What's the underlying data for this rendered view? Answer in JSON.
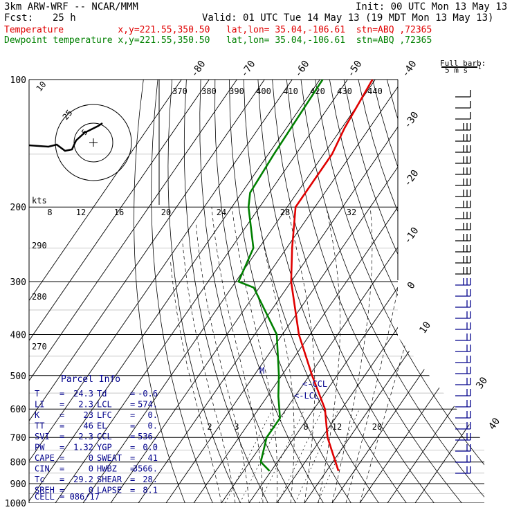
{
  "header": {
    "model": "3km ARW-WRF -- NCAR/MMM",
    "init": "Init: 00 UTC Mon 13 May 13",
    "fcst_label": "Fcst:",
    "fcst_value": "25 h",
    "valid": "Valid: 01 UTC Tue 14 May 13 (19 MDT Mon 13 May 13)",
    "temp_line": "Temperature          x,y=221.55,350.50   lat,lon= 35.04,-106.61  stn=ABQ ,72365",
    "dew_line": "Dewpoint temperature x,y=221.55,350.50   lat,lon= 35.04,-106.61  stn=ABQ ,72365"
  },
  "barb_legend": {
    "title": "Full barb:",
    "value": "5 m s",
    "exp": "-1"
  },
  "hodograph": {
    "ring_labels": [
      "5",
      "10"
    ],
    "kts_label": "kts",
    "ring_label_top": "25"
  },
  "theta_labels": [
    "370",
    "380",
    "390",
    "400",
    "410",
    "420",
    "430",
    "440"
  ],
  "top_temp_labels": [
    "-80",
    "-70",
    "-60",
    "-50",
    "-40"
  ],
  "right_temp_labels": [
    "-30",
    "-20",
    "-10",
    "0",
    "10",
    "30",
    "40"
  ],
  "mixing_ratio_labels_200": [
    "8",
    "12",
    "16",
    "20",
    "24",
    "28",
    "32"
  ],
  "mixing_ratio_labels_700": [
    "2",
    "3",
    "5",
    "8",
    "12",
    "20"
  ],
  "left_theta_labels": [
    "290",
    "280",
    "270"
  ],
  "markers": {
    "ccl": "<-CCL",
    "lcl": "<-LCL",
    "el": "M"
  },
  "parcel_info": {
    "title": "Parcel Info",
    "rows": [
      {
        "k1": "T",
        "v1": "24.3",
        "k2": "Td",
        "v2": "-0.6"
      },
      {
        "k1": "LI",
        "v1": "2.3",
        "k2": "LCL",
        "v2": "574."
      },
      {
        "k1": "K",
        "v1": "23",
        "k2": "LFC",
        "v2": "0."
      },
      {
        "k1": "TT",
        "v1": "46",
        "k2": "EL",
        "v2": "0."
      },
      {
        "k1": "SVI",
        "v1": "2.3",
        "k2": "CCL",
        "v2": "536."
      },
      {
        "k1": "PW",
        "v1": "1.32",
        "k2": "YGP",
        "v2": "0.0"
      },
      {
        "k1": "CAPE",
        "v1": "0",
        "k2": "SWEAT",
        "v2": "41"
      },
      {
        "k1": "CIN",
        "v1": "0",
        "k2": "HWBZ",
        "v2": "3566."
      },
      {
        "k1": "Tc",
        "v1": "29.2",
        "k2": "SHEAR",
        "v2": "28."
      },
      {
        "k1": "SREH",
        "v1": "0",
        "k2": "LAPSE",
        "v2": "8.1"
      }
    ],
    "cell": "CELL = 086/17"
  },
  "colors": {
    "temperature": "#e00000",
    "dewpoint": "#008000",
    "grid": "#000000",
    "parcel_text": "#00008b"
  },
  "chart_data": {
    "type": "skew-t",
    "pressure_levels": [
      100,
      200,
      300,
      400,
      500,
      600,
      700,
      800,
      900,
      1000
    ],
    "yscale": "log",
    "ylim": [
      1000,
      100
    ],
    "series": [
      {
        "name": "Temperature",
        "pressure": [
          100,
          130,
          150,
          170,
          200,
          250,
          300,
          400,
          500,
          600,
          700,
          800,
          840
        ],
        "temperature": [
          -61,
          -59,
          -57,
          -57,
          -57,
          -48,
          -40,
          -24,
          -9,
          4,
          12,
          21,
          24.3
        ]
      },
      {
        "name": "Dewpoint temperature",
        "pressure": [
          100,
          150,
          185,
          200,
          250,
          300,
          310,
          400,
          500,
          560,
          630,
          700,
          800,
          840
        ],
        "temperature": [
          -79,
          -78,
          -77,
          -74,
          -62,
          -59,
          -52,
          -32,
          -21,
          -16,
          -10,
          -10,
          -6,
          -0.6
        ]
      }
    ],
    "parcel": {
      "lcl_hpa": 574,
      "ccl_hpa": 536,
      "el_hpa": 0
    },
    "xlabel": "",
    "ylabel": ""
  }
}
